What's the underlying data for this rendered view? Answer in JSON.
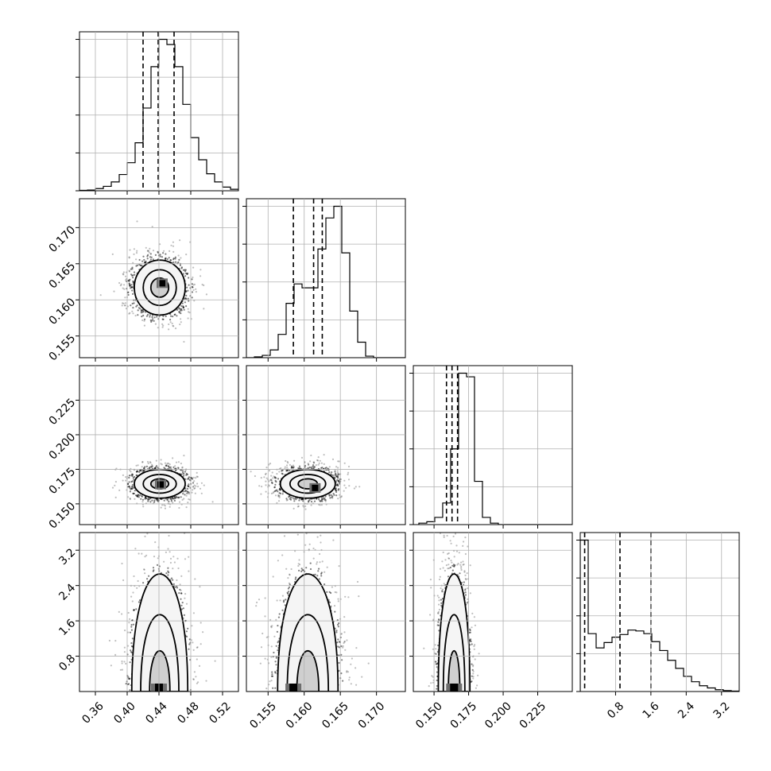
{
  "chart_data": {
    "type": "corner",
    "parameters": [
      {
        "range": [
          0.34,
          0.54
        ],
        "ticks": [
          0.36,
          0.4,
          0.44,
          0.48,
          0.52
        ],
        "tick_labels": [
          "0.36",
          "0.40",
          "0.44",
          "0.48",
          "0.52"
        ],
        "quantiles": [
          0.42,
          0.439,
          0.459
        ],
        "hist": {
          "edges_start": 0.34,
          "bin_width": 0.01,
          "counts": [
            0.5,
            1,
            3,
            6,
            12,
            22,
            38,
            65,
            112,
            168,
            205,
            198,
            168,
            117,
            72,
            42,
            23,
            12,
            5,
            2
          ]
        }
      },
      {
        "range": [
          0.152,
          0.174
        ],
        "ticks": [
          0.155,
          0.16,
          0.165,
          0.17
        ],
        "tick_labels": [
          "0.155",
          "0.160",
          "0.165",
          "0.170"
        ],
        "quantiles": [
          0.1585,
          0.1613,
          0.1625
        ],
        "hist": {
          "edges_start": 0.152,
          "bin_width": 0.0011,
          "counts": [
            0,
            1,
            3,
            10,
            30,
            70,
            95,
            90,
            90,
            140,
            180,
            195,
            135,
            60,
            20,
            2,
            0,
            0,
            0,
            0,
            0
          ]
        }
      },
      {
        "range": [
          0.135,
          0.25
        ],
        "ticks": [
          0.15,
          0.175,
          0.2,
          0.225
        ],
        "tick_labels": [
          "0.150",
          "0.175",
          "0.200",
          "0.225"
        ],
        "quantiles": [
          0.159,
          0.163,
          0.167
        ],
        "hist": {
          "edges_start": 0.139,
          "bin_width": 0.00575,
          "counts": [
            2,
            4,
            10,
            30,
            105,
            210,
            205,
            60,
            10,
            2,
            0,
            0,
            0,
            0,
            0,
            0,
            0,
            0,
            0,
            0
          ]
        }
      },
      {
        "range": [
          0.0,
          3.6
        ],
        "ticks": [
          0.8,
          1.6,
          2.4,
          3.2
        ],
        "tick_labels": [
          "0.8",
          "1.6",
          "2.4",
          "3.2"
        ],
        "quantiles": [
          0.1,
          0.9,
          1.6
        ],
        "hist": {
          "edges_start": 0.0,
          "bin_width": 0.18,
          "counts": [
            340,
            130,
            98,
            110,
            122,
            128,
            138,
            136,
            130,
            112,
            92,
            70,
            52,
            34,
            22,
            13,
            8,
            4,
            2,
            1
          ]
        }
      }
    ],
    "pairs": [
      {
        "row": 1,
        "col": 0,
        "mean": [
          0.441,
          0.1617
        ],
        "sd": [
          0.016,
          0.0019
        ],
        "core": [
          0.444,
          0.1623
        ]
      },
      {
        "row": 2,
        "col": 0,
        "mean": [
          0.441,
          0.1645
        ],
        "sd": [
          0.016,
          0.0052
        ],
        "core": [
          0.442,
          0.164
        ]
      },
      {
        "row": 2,
        "col": 1,
        "mean": [
          0.1605,
          0.1645
        ],
        "sd": [
          0.0019,
          0.0052
        ],
        "core": [
          0.1615,
          0.1615
        ]
      },
      {
        "row": 3,
        "col": 0,
        "mean": [
          0.441,
          1.05
        ],
        "sd": [
          0.016,
          0.65
        ],
        "core": [
          0.44,
          0.15
        ]
      },
      {
        "row": 3,
        "col": 1,
        "mean": [
          0.1605,
          1.05
        ],
        "sd": [
          0.0019,
          0.65
        ],
        "core": [
          0.1585,
          0.15
        ]
      },
      {
        "row": 3,
        "col": 2,
        "mean": [
          0.1645,
          1.05
        ],
        "sd": [
          0.0052,
          0.65
        ],
        "core": [
          0.1645,
          0.15
        ]
      }
    ],
    "grid": true,
    "colors": {
      "line": "#000000",
      "grid": "#b0b0b0",
      "fill_light": "#f5f5f5",
      "fill_mid": "#cfcfcf",
      "fill_dark": "#6e6e6e",
      "core": "#000000"
    }
  }
}
